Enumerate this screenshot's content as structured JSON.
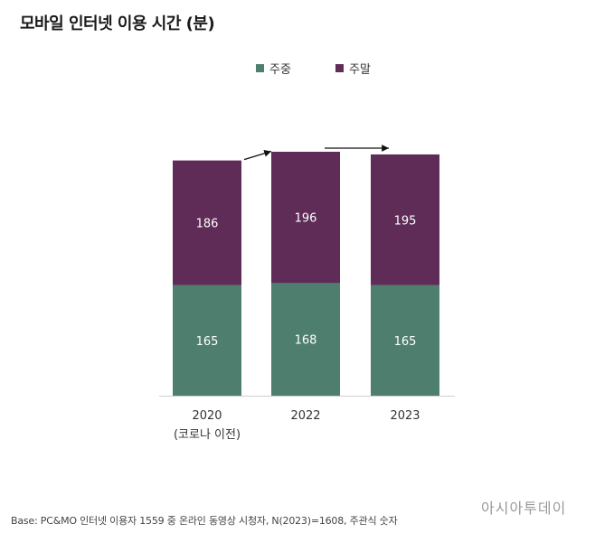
{
  "title": "모바일 인터넷 이용 시간 (분)",
  "chart_data": {
    "type": "bar",
    "stacked": true,
    "categories": [
      "2020",
      "2022",
      "2023"
    ],
    "category_sublabels": [
      "(코로나 이전)",
      "",
      ""
    ],
    "series": [
      {
        "name": "주중",
        "values": [
          165,
          168,
          165
        ],
        "color": "#4e7e6e"
      },
      {
        "name": "주말",
        "values": [
          186,
          196,
          195
        ],
        "color": "#5e2c57"
      }
    ],
    "legend_position": "top-center",
    "grid": false,
    "ylim": [
      0,
      364
    ],
    "annotations": [
      "arrow 2020→2022",
      "arrow 2022→2023"
    ]
  },
  "footnote": "Base: PC&MO 인터넷 이용자 1559 중 온라인 동영상 시청자, N(2023)=1608, 주관식 숫자",
  "watermark": "아시아투데이"
}
